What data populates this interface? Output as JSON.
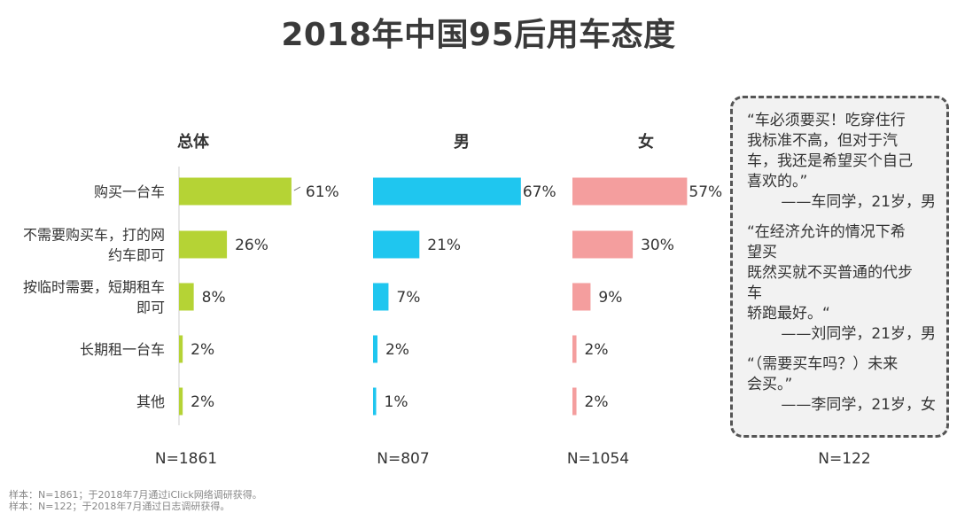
{
  "title": "2018年中国95后用车态度",
  "chart_data": {
    "type": "bar",
    "orientation": "horizontal",
    "categories": [
      "购买一台车",
      "不需要购买车，打的网约车即可",
      "按临时需要，短期租车即可",
      "长期租一台车",
      "其他"
    ],
    "category_labels": [
      [
        "购买一台车"
      ],
      [
        "不需要购买车，打的网",
        "约车即可"
      ],
      [
        "按临时需要，短期租车",
        "即可"
      ],
      [
        "长期租一台车"
      ],
      [
        "其他"
      ]
    ],
    "unit": "%",
    "series": [
      {
        "name": "总体",
        "values": [
          61,
          26,
          8,
          2,
          2
        ],
        "color": "#b5d335",
        "sample": "N=1861"
      },
      {
        "name": "男",
        "values": [
          67,
          21,
          7,
          2,
          1
        ],
        "color": "#1fc6ef",
        "sample": "N=807"
      },
      {
        "name": "女",
        "values": [
          57,
          30,
          9,
          2,
          2
        ],
        "color": "#f49e9e",
        "sample": "N=1054"
      }
    ],
    "xlim": [
      0,
      100
    ],
    "grid": false,
    "legend": "none"
  },
  "quotes": {
    "sample": "N=122",
    "items": [
      {
        "text": "“车必须要买！吃穿住行\n我标准不高，但对于汽\n车，我还是希望买个自己\n喜欢的。”",
        "attribution": "——车同学，21岁，男"
      },
      {
        "text": "“在经济允许的情况下希\n望买\n既然买就不买普通的代步\n车\n轿跑最好。“",
        "attribution": "——刘同学，21岁，男"
      },
      {
        "text": "“（需要买车吗？）未来\n会买。”",
        "attribution": "——李同学，21岁，女"
      }
    ]
  },
  "notes": [
    "样本：N=1861；于2018年7月通过iClick网络调研获得。",
    "样本：N=122；于2018年7月通过日志调研获得。"
  ]
}
